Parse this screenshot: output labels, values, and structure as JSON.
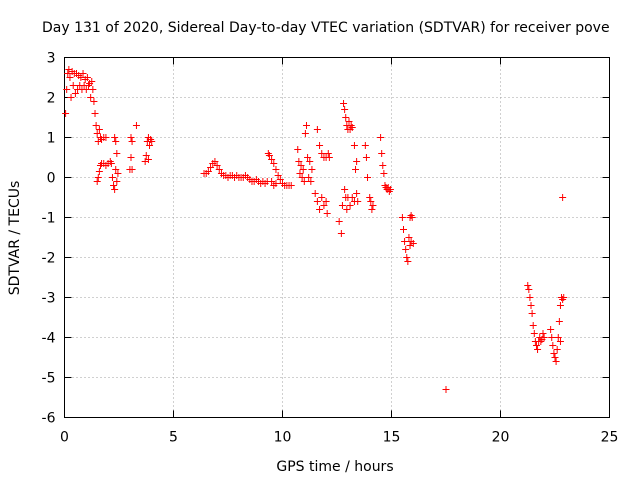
{
  "chart_data": {
    "type": "scatter",
    "title": "Day 131 of 2020, Sidereal Day-to-day VTEC variation (SDTVAR) for receiver pove",
    "xlabel": "GPS time / hours",
    "ylabel": "SDTVAR / TECUs",
    "xlim": [
      0,
      25
    ],
    "ylim": [
      -6,
      3
    ],
    "xticks": [
      "0",
      "5",
      "10",
      "15",
      "20",
      "25"
    ],
    "yticks": [
      "3",
      "2",
      "1",
      "0",
      "-1",
      "-2",
      "-3",
      "-4",
      "-5",
      "-6"
    ],
    "grid": true,
    "marker": "plus",
    "colors": {
      "series": "#ff0000",
      "grid": "#a0a0a0",
      "axis": "#000000"
    },
    "series": [
      {
        "name": "SDTVAR",
        "points": [
          [
            0.05,
            1.6
          ],
          [
            0.1,
            2.2
          ],
          [
            0.15,
            2.6
          ],
          [
            0.2,
            2.7
          ],
          [
            0.25,
            2.5
          ],
          [
            0.3,
            2.0
          ],
          [
            0.35,
            2.65
          ],
          [
            0.4,
            2.3
          ],
          [
            0.45,
            2.6
          ],
          [
            0.5,
            2.1
          ],
          [
            0.55,
            2.6
          ],
          [
            0.6,
            2.2
          ],
          [
            0.65,
            2.55
          ],
          [
            0.7,
            2.3
          ],
          [
            0.75,
            2.5
          ],
          [
            0.8,
            2.2
          ],
          [
            0.85,
            2.6
          ],
          [
            0.9,
            2.3
          ],
          [
            0.95,
            2.45
          ],
          [
            1.0,
            2.2
          ],
          [
            1.05,
            2.5
          ],
          [
            1.1,
            2.3
          ],
          [
            1.15,
            2.35
          ],
          [
            1.2,
            2.0
          ],
          [
            1.25,
            2.4
          ],
          [
            1.3,
            2.2
          ],
          [
            1.35,
            1.9
          ],
          [
            1.4,
            1.6
          ],
          [
            1.45,
            1.3
          ],
          [
            1.5,
            1.1
          ],
          [
            1.55,
            0.9
          ],
          [
            1.6,
            1.2
          ],
          [
            1.65,
            1.0
          ],
          [
            1.7,
            0.95
          ],
          [
            1.8,
            1.0
          ],
          [
            1.9,
            1.0
          ],
          [
            1.5,
            -0.1
          ],
          [
            1.55,
            0.0
          ],
          [
            1.6,
            0.15
          ],
          [
            1.65,
            0.3
          ],
          [
            1.7,
            0.35
          ],
          [
            1.8,
            0.35
          ],
          [
            1.9,
            0.3
          ],
          [
            2.0,
            0.35
          ],
          [
            2.1,
            0.4
          ],
          [
            2.15,
            0.35
          ],
          [
            2.2,
            0.0
          ],
          [
            2.25,
            -0.2
          ],
          [
            2.3,
            -0.3
          ],
          [
            2.35,
            0.2
          ],
          [
            2.4,
            0.6
          ],
          [
            2.3,
            1.0
          ],
          [
            2.35,
            0.9
          ],
          [
            2.4,
            -0.1
          ],
          [
            2.45,
            0.1
          ],
          [
            3.0,
            0.2
          ],
          [
            3.05,
            0.5
          ],
          [
            3.1,
            0.9
          ],
          [
            3.05,
            1.0
          ],
          [
            3.1,
            0.2
          ],
          [
            3.3,
            1.3
          ],
          [
            3.7,
            0.4
          ],
          [
            3.75,
            0.55
          ],
          [
            3.8,
            0.9
          ],
          [
            3.85,
            1.0
          ],
          [
            3.9,
            0.8
          ],
          [
            3.95,
            0.95
          ],
          [
            4.0,
            0.9
          ],
          [
            3.85,
            0.45
          ],
          [
            6.4,
            0.1
          ],
          [
            6.5,
            0.1
          ],
          [
            6.6,
            0.15
          ],
          [
            6.7,
            0.25
          ],
          [
            6.8,
            0.35
          ],
          [
            6.9,
            0.4
          ],
          [
            7.0,
            0.3
          ],
          [
            7.1,
            0.2
          ],
          [
            7.2,
            0.1
          ],
          [
            7.3,
            0.05
          ],
          [
            7.4,
            0.05
          ],
          [
            7.5,
            0.0
          ],
          [
            7.6,
            0.05
          ],
          [
            7.7,
            0.05
          ],
          [
            7.8,
            0.0
          ],
          [
            7.9,
            0.05
          ],
          [
            8.0,
            0.0
          ],
          [
            8.1,
            0.0
          ],
          [
            8.2,
            0.0
          ],
          [
            8.3,
            0.05
          ],
          [
            8.4,
            0.0
          ],
          [
            8.5,
            -0.05
          ],
          [
            8.6,
            -0.1
          ],
          [
            8.7,
            -0.1
          ],
          [
            8.8,
            -0.05
          ],
          [
            8.9,
            -0.1
          ],
          [
            9.0,
            -0.15
          ],
          [
            9.1,
            -0.1
          ],
          [
            9.2,
            -0.15
          ],
          [
            9.3,
            -0.1
          ],
          [
            9.35,
            0.6
          ],
          [
            9.4,
            0.55
          ],
          [
            9.5,
            0.45
          ],
          [
            9.6,
            0.35
          ],
          [
            9.7,
            0.2
          ],
          [
            9.8,
            0.05
          ],
          [
            9.9,
            -0.05
          ],
          [
            10.0,
            -0.15
          ],
          [
            10.1,
            -0.2
          ],
          [
            10.2,
            -0.2
          ],
          [
            10.3,
            -0.2
          ],
          [
            10.4,
            -0.2
          ],
          [
            9.5,
            -0.1
          ],
          [
            9.6,
            -0.2
          ],
          [
            9.7,
            -0.15
          ],
          [
            10.7,
            0.7
          ],
          [
            10.75,
            0.4
          ],
          [
            10.8,
            0.1
          ],
          [
            10.85,
            0.3
          ],
          [
            10.9,
            0.0
          ],
          [
            10.95,
            0.2
          ],
          [
            11.0,
            -0.1
          ],
          [
            11.05,
            1.1
          ],
          [
            11.1,
            1.3
          ],
          [
            11.15,
            0.5
          ],
          [
            11.2,
            0.0
          ],
          [
            11.25,
            0.4
          ],
          [
            11.3,
            -0.1
          ],
          [
            11.35,
            0.2
          ],
          [
            11.5,
            -0.4
          ],
          [
            11.6,
            -0.6
          ],
          [
            11.7,
            -0.8
          ],
          [
            11.8,
            -0.5
          ],
          [
            11.9,
            -0.7
          ],
          [
            12.0,
            -0.6
          ],
          [
            12.05,
            -0.9
          ],
          [
            11.6,
            1.2
          ],
          [
            11.7,
            0.8
          ],
          [
            11.8,
            0.6
          ],
          [
            11.9,
            0.5
          ],
          [
            12.0,
            0.5
          ],
          [
            12.1,
            0.6
          ],
          [
            12.15,
            0.5
          ],
          [
            12.6,
            -1.1
          ],
          [
            12.7,
            -1.4
          ],
          [
            12.75,
            -0.7
          ],
          [
            12.8,
            1.85
          ],
          [
            12.85,
            1.7
          ],
          [
            12.9,
            1.5
          ],
          [
            12.95,
            1.3
          ],
          [
            13.0,
            1.2
          ],
          [
            13.05,
            1.4
          ],
          [
            13.1,
            1.2
          ],
          [
            13.15,
            1.3
          ],
          [
            13.2,
            1.25
          ],
          [
            12.85,
            -0.3
          ],
          [
            12.9,
            -0.5
          ],
          [
            12.95,
            -0.8
          ],
          [
            13.0,
            -0.5
          ],
          [
            13.1,
            -0.7
          ],
          [
            13.2,
            -0.5
          ],
          [
            13.3,
            -0.6
          ],
          [
            13.4,
            -0.4
          ],
          [
            13.45,
            -0.6
          ],
          [
            13.3,
            0.8
          ],
          [
            13.35,
            0.2
          ],
          [
            13.4,
            0.4
          ],
          [
            13.8,
            0.8
          ],
          [
            13.85,
            0.5
          ],
          [
            13.9,
            0.0
          ],
          [
            14.0,
            -0.5
          ],
          [
            14.05,
            -0.6
          ],
          [
            14.1,
            -0.8
          ],
          [
            14.15,
            -0.7
          ],
          [
            14.5,
            1.0
          ],
          [
            14.55,
            0.6
          ],
          [
            14.6,
            0.3
          ],
          [
            14.65,
            0.1
          ],
          [
            14.7,
            -0.2
          ],
          [
            14.75,
            -0.25
          ],
          [
            14.8,
            -0.3
          ],
          [
            14.85,
            -0.25
          ],
          [
            14.9,
            -0.35
          ],
          [
            14.95,
            -0.3
          ],
          [
            15.5,
            -1.0
          ],
          [
            15.55,
            -1.3
          ],
          [
            15.6,
            -1.6
          ],
          [
            15.65,
            -1.8
          ],
          [
            15.7,
            -2.0
          ],
          [
            15.75,
            -2.1
          ],
          [
            15.8,
            -1.5
          ],
          [
            15.85,
            -1.7
          ],
          [
            15.9,
            -1.6
          ],
          [
            16.0,
            -1.65
          ],
          [
            15.85,
            -1.0
          ],
          [
            15.9,
            -0.95
          ],
          [
            15.95,
            -1.0
          ],
          [
            17.5,
            -5.3
          ],
          [
            21.25,
            -2.7
          ],
          [
            21.3,
            -2.8
          ],
          [
            21.35,
            -3.0
          ],
          [
            21.4,
            -3.2
          ],
          [
            21.45,
            -3.4
          ],
          [
            21.5,
            -3.7
          ],
          [
            21.55,
            -3.9
          ],
          [
            21.6,
            -4.1
          ],
          [
            21.65,
            -4.2
          ],
          [
            21.7,
            -4.3
          ],
          [
            21.75,
            -4.1
          ],
          [
            21.8,
            -4.0
          ],
          [
            21.85,
            -4.1
          ],
          [
            21.9,
            -4.05
          ],
          [
            21.95,
            -3.9
          ],
          [
            22.0,
            -4.0
          ],
          [
            22.3,
            -3.8
          ],
          [
            22.35,
            -4.0
          ],
          [
            22.4,
            -4.2
          ],
          [
            22.45,
            -4.4
          ],
          [
            22.5,
            -4.5
          ],
          [
            22.55,
            -4.6
          ],
          [
            22.6,
            -4.3
          ],
          [
            22.65,
            -4.0
          ],
          [
            22.7,
            -3.6
          ],
          [
            22.75,
            -3.2
          ],
          [
            22.8,
            -3.0
          ],
          [
            22.85,
            -3.05
          ],
          [
            22.9,
            -3.0
          ],
          [
            22.75,
            -4.1
          ],
          [
            22.85,
            -0.5
          ]
        ]
      }
    ]
  }
}
